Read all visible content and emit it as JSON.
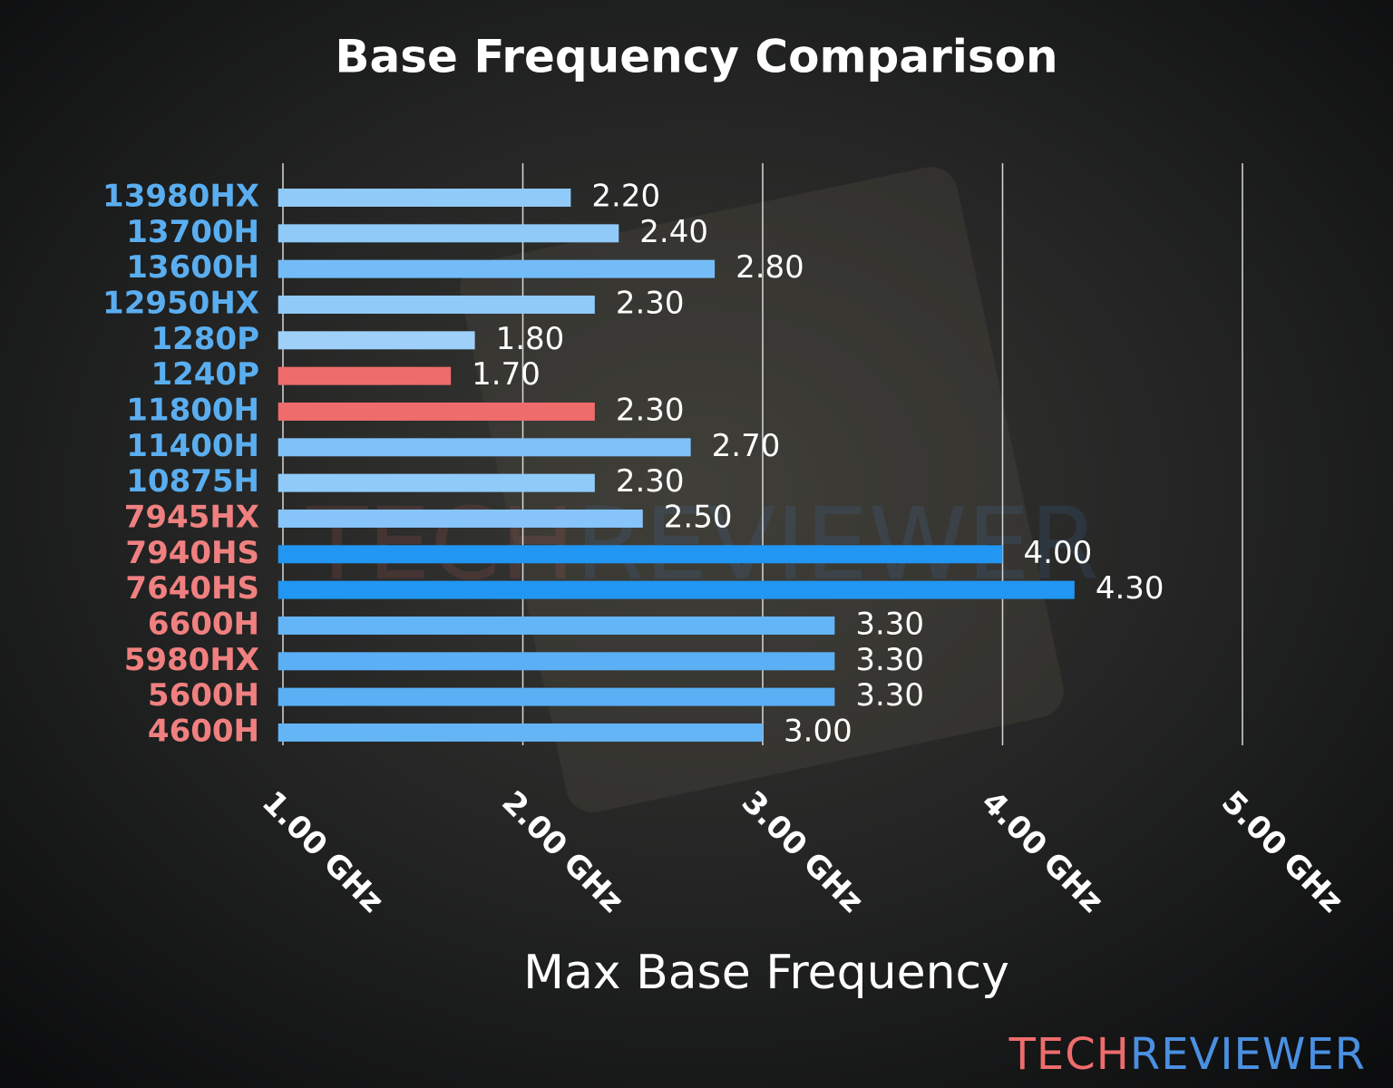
{
  "chart_data": {
    "type": "barh",
    "title": "Base Frequency Comparison",
    "xlabel": "Max Base Frequency",
    "categories": [
      "13980HX",
      "13700H",
      "13600H",
      "12950HX",
      "1280P",
      "1240P",
      "11800H",
      "11400H",
      "10875H",
      "7945HX",
      "7940HS",
      "7640HS",
      "6600H",
      "5980HX",
      "5600H",
      "4600H"
    ],
    "values": [
      2.2,
      2.4,
      2.8,
      2.3,
      1.8,
      1.7,
      2.3,
      2.7,
      2.3,
      2.5,
      4.0,
      4.3,
      3.3,
      3.3,
      3.3,
      3.0
    ],
    "value_labels": [
      "2.20",
      "2.40",
      "2.80",
      "2.30",
      "1.80",
      "1.70",
      "2.30",
      "2.70",
      "2.30",
      "2.50",
      "4.00",
      "4.30",
      "3.30",
      "3.30",
      "3.30",
      "3.00"
    ],
    "colors": [
      "#90caf9",
      "#90caf9",
      "#74bcf8",
      "#90caf9",
      "#9fd0fa",
      "#ef6c6c",
      "#ef6c6c",
      "#7fc1f8",
      "#90caf9",
      "#86c4f9",
      "#2196f3",
      "#2196f3",
      "#64b5f6",
      "#5aaff5",
      "#5aaff5",
      "#64b5f6"
    ],
    "label_colors": [
      "#5aaef0",
      "#5aaef0",
      "#5aaef0",
      "#5aaef0",
      "#5aaef0",
      "#5aaef0",
      "#5aaef0",
      "#5aaef0",
      "#5aaef0",
      "#f08080",
      "#f08080",
      "#f08080",
      "#f08080",
      "#f08080",
      "#f08080",
      "#f08080"
    ],
    "xlim": [
      0.98,
      5.0
    ],
    "xticks": [
      {
        "value": 1,
        "label": "1.00 GHz"
      },
      {
        "value": 2,
        "label": "2.00 GHz"
      },
      {
        "value": 3,
        "label": "3.00 GHz"
      },
      {
        "value": 4,
        "label": "4.00 GHz"
      },
      {
        "value": 5,
        "label": "5.00 GHz"
      }
    ],
    "grid": true,
    "watermark": [
      "TECH",
      "REVIEWER"
    ]
  }
}
